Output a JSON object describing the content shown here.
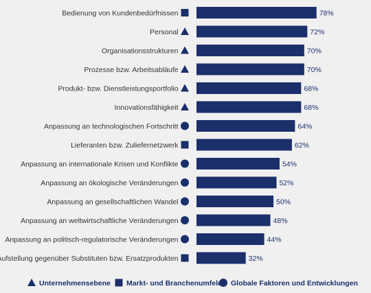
{
  "chart_data": {
    "type": "bar",
    "orientation": "horizontal",
    "title": "",
    "xlabel": "",
    "ylabel": "",
    "xlim": [
      0,
      100
    ],
    "grid": false,
    "legend_placement": "bottom",
    "bar_color": "#1b2f6b",
    "categories": [
      "Bedienung von Kundenbedürfnissen",
      "Personal",
      "Organisationsstrukturen",
      "Prozesse bzw. Arbeitsabläufe",
      "Produkt- bzw. Dienstleistungsportfolio",
      "Innovationsfähigkeit",
      "Anpassung an technologischen Fortschritt",
      "Lieferanten bzw. Zuliefernetzwerk",
      "Anpassung an internationale Krisen und Konflikte",
      "Anpassung an ökologische Veränderungen",
      "Anpassung an gesellschaftlichen Wandel",
      "Anpassung an weltwirtschaftliche Veränderungen",
      "Anpassung an politisch-regulatorische Veränderungen",
      "Aufstellung gegenüber Substituten bzw. Ersatzprodukten"
    ],
    "values": [
      78,
      72,
      70,
      70,
      68,
      68,
      64,
      62,
      54,
      52,
      50,
      48,
      44,
      32
    ],
    "value_labels": [
      "78%",
      "72%",
      "70%",
      "70%",
      "68%",
      "68%",
      "64%",
      "62%",
      "54%",
      "52%",
      "50%",
      "48%",
      "44%",
      "32%"
    ],
    "markers": [
      "square",
      "triangle",
      "triangle",
      "triangle",
      "triangle",
      "triangle",
      "circle",
      "square",
      "circle",
      "circle",
      "circle",
      "circle",
      "circle",
      "square"
    ],
    "legend": [
      {
        "marker": "triangle",
        "label": "Unternehmensebene"
      },
      {
        "marker": "square",
        "label": "Markt- und Branchenumfeld"
      },
      {
        "marker": "circle",
        "label": "Globale Faktoren und Entwicklungen"
      }
    ]
  }
}
